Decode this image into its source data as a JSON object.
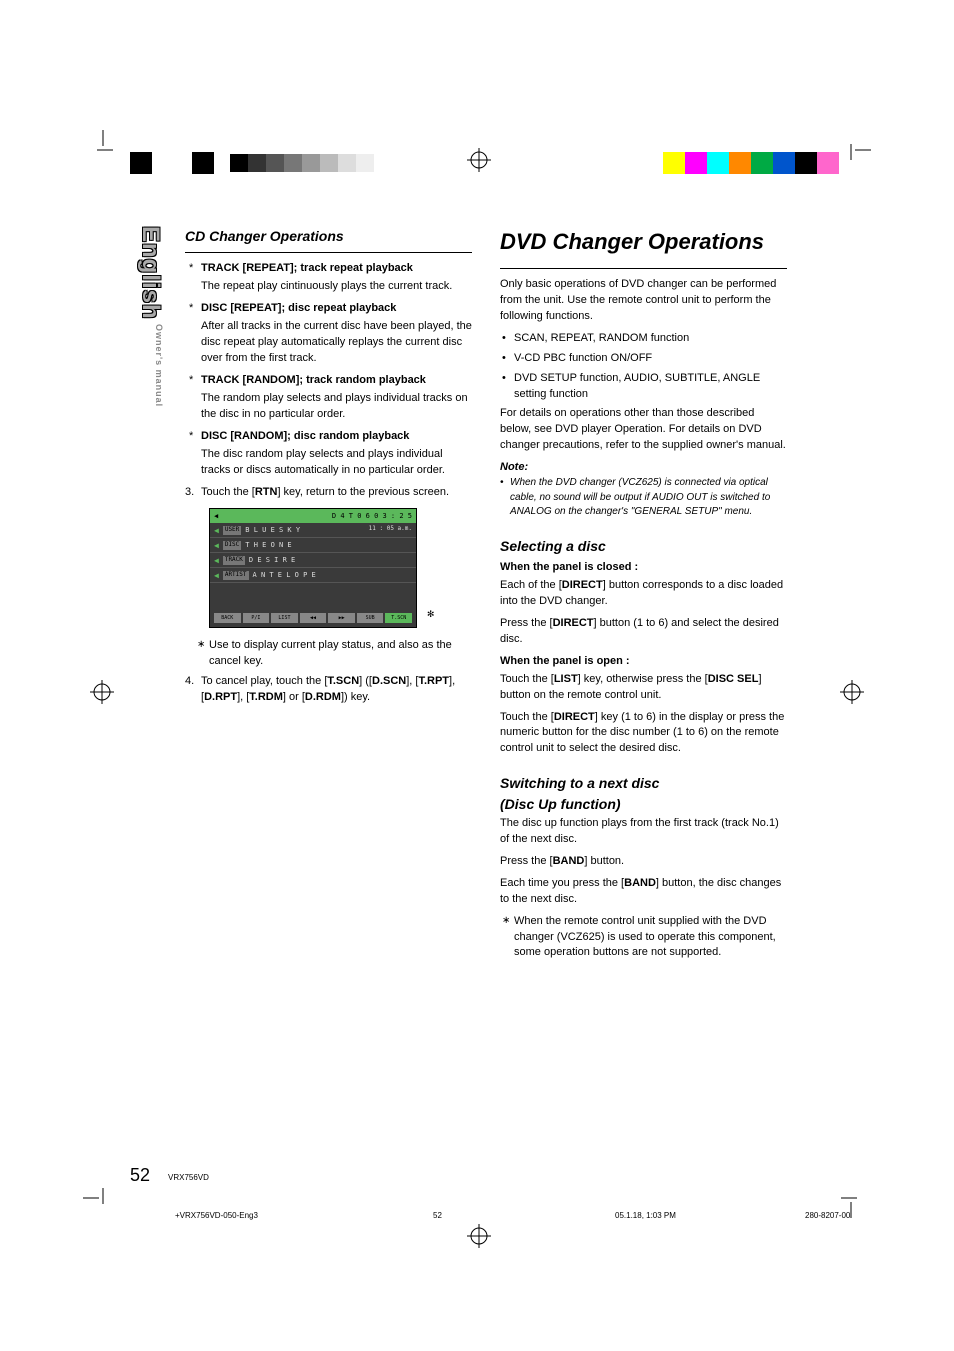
{
  "print_marks": {
    "gray_levels": [
      "#000000",
      "#333333",
      "#555555",
      "#777777",
      "#999999",
      "#bbbbbb",
      "#dddddd",
      "#eeeeee"
    ],
    "color_bars": [
      "#ffff00",
      "#ff00ff",
      "#00ffff",
      "#ff8800",
      "#00aa44",
      "#0055cc",
      "#000000",
      "#ff66cc"
    ]
  },
  "side_tab": {
    "language": "English",
    "subtitle": "Owner's manual"
  },
  "left_column": {
    "section_title": "CD Changer Operations",
    "items": [
      {
        "head": "TRACK [REPEAT]; track repeat playback",
        "body": "The repeat play cintinuously plays the current track."
      },
      {
        "head": "DISC [REPEAT]; disc repeat playback",
        "body": "After all tracks in the current disc have been played, the disc repeat play automatically replays the current disc over from the first track."
      },
      {
        "head": "TRACK [RANDOM]; track random playback",
        "body": "The random play selects and plays individual tracks on the disc in no particular order."
      },
      {
        "head": "DISC [RANDOM]; disc random playback",
        "body": "The disc random play selects and plays individual tracks or discs automatically in no particular order."
      }
    ],
    "step3_pre": "Touch the [",
    "step3_key": "RTN",
    "step3_post": "] key, return to the previous screen.",
    "display": {
      "top_left": "D 4    T 0 6    0 3 : 2 5",
      "time": "11 : 05 a.m.",
      "rows": [
        {
          "label": "USER",
          "text": "B L U E   S K Y"
        },
        {
          "label": "DISC",
          "text": "T H E   O N E"
        },
        {
          "label": "TRACK",
          "text": "D E S I R E"
        },
        {
          "label": "ARTIST",
          "text": "A N T E L O P E"
        }
      ],
      "buttons": [
        "BACK",
        "P/I",
        "LIST",
        "◀◀",
        "▶▶",
        "SUB",
        "T.SCN"
      ]
    },
    "caption": "Use to display current play status, and also as the cancel key.",
    "step4_parts": [
      "To cancel play, touch the [",
      "T.SCN",
      "] ([",
      "D.SCN",
      "], [",
      "T.RPT",
      "], [",
      "D.RPT",
      "], [",
      "T.RDM",
      "] or [",
      "D.RDM",
      "]) key."
    ]
  },
  "right_column": {
    "main_title": "DVD Changer Operations",
    "intro": "Only basic operations of DVD changer can be performed from the unit. Use the remote control unit to perform the following functions.",
    "bullets": [
      "SCAN, REPEAT, RANDOM function",
      "V-CD PBC function ON/OFF",
      "DVD SETUP function, AUDIO, SUBTITLE, ANGLE setting function"
    ],
    "details_para": "For details on operations other than those described below, see DVD player Operation. For details on DVD changer precautions, refer to the supplied owner's manual.",
    "note_head": "Note:",
    "note_body": "When the DVD changer (VCZ625) is connected via optical cable, no sound will be output if AUDIO OUT is switched to ANALOG on the changer's \"GENERAL SETUP\" menu.",
    "selecting": {
      "title": "Selecting a disc",
      "closed_head": "When the panel is closed :",
      "closed_p1a": "Each of the [",
      "closed_p1b": "DIRECT",
      "closed_p1c": "] button corresponds to a disc loaded into the DVD changer.",
      "closed_p2a": "Press the [",
      "closed_p2b": "DIRECT",
      "closed_p2c": "] button (1 to 6) and select the desired disc.",
      "open_head": "When the panel is open :",
      "open_p1a": "Touch the [",
      "open_p1b": "LIST",
      "open_p1c": "] key, otherwise press the [",
      "open_p1d": "DISC SEL",
      "open_p1e": "] button on the remote control unit.",
      "open_p2a": "Touch the [",
      "open_p2b": "DIRECT",
      "open_p2c": "] key (1 to 6) in the display or press the numeric button for the disc number (1 to 6) on the remote control unit to select the desired disc."
    },
    "switching": {
      "title1": "Switching to a next disc",
      "title2": "(Disc Up function)",
      "p1": "The disc up function plays from the first track (track No.1) of the next disc.",
      "p2a": "Press the [",
      "p2b": "BAND",
      "p2c": "] button.",
      "p3a": "Each time you press the [",
      "p3b": "BAND",
      "p3c": "] button, the disc changes to the next disc.",
      "note": "When the remote control unit supplied with the DVD changer (VCZ625) is used to operate this component, some operation buttons are not supported."
    }
  },
  "footer": {
    "page": "52",
    "model": "VRX756VD",
    "file": "+VRX756VD-050-Eng3",
    "pg": "52",
    "date": "05.1.18, 1:03 PM",
    "part": "280-8207-00"
  }
}
